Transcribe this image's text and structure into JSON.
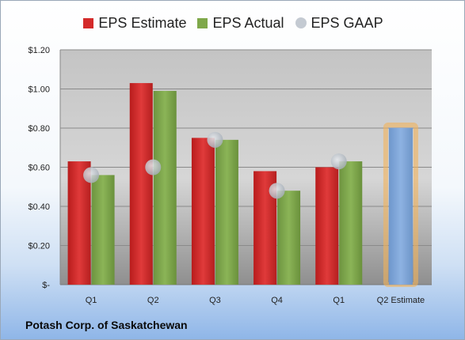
{
  "chart_data": {
    "type": "bar",
    "categories": [
      "Q1",
      "Q2",
      "Q3",
      "Q4",
      "Q1",
      "Q2 Estimate"
    ],
    "series": [
      {
        "name": "EPS Estimate",
        "color": "#d42a2a",
        "values": [
          0.63,
          1.03,
          0.75,
          0.58,
          0.6,
          null
        ]
      },
      {
        "name": "EPS Actual",
        "color": "#7fa84a",
        "values": [
          0.56,
          0.99,
          0.74,
          0.48,
          0.63,
          null
        ]
      },
      {
        "name": "EPS GAAP",
        "color": "#b8c0c8",
        "type": "scatter",
        "values": [
          0.56,
          0.6,
          0.74,
          0.48,
          0.63,
          null
        ]
      }
    ],
    "highlight": {
      "category": "Q2 Estimate",
      "value": 0.8,
      "color": "#7ea7d8",
      "glow": "#f2b25a"
    },
    "y_ticks": [
      "$-",
      "$0.20",
      "$0.40",
      "$0.60",
      "$0.80",
      "$1.00",
      "$1.20"
    ],
    "ylim": [
      0,
      1.2
    ],
    "legend_position": "top",
    "grid": true
  },
  "footer": {
    "company": "Potash Corp. of Saskatchewan"
  }
}
